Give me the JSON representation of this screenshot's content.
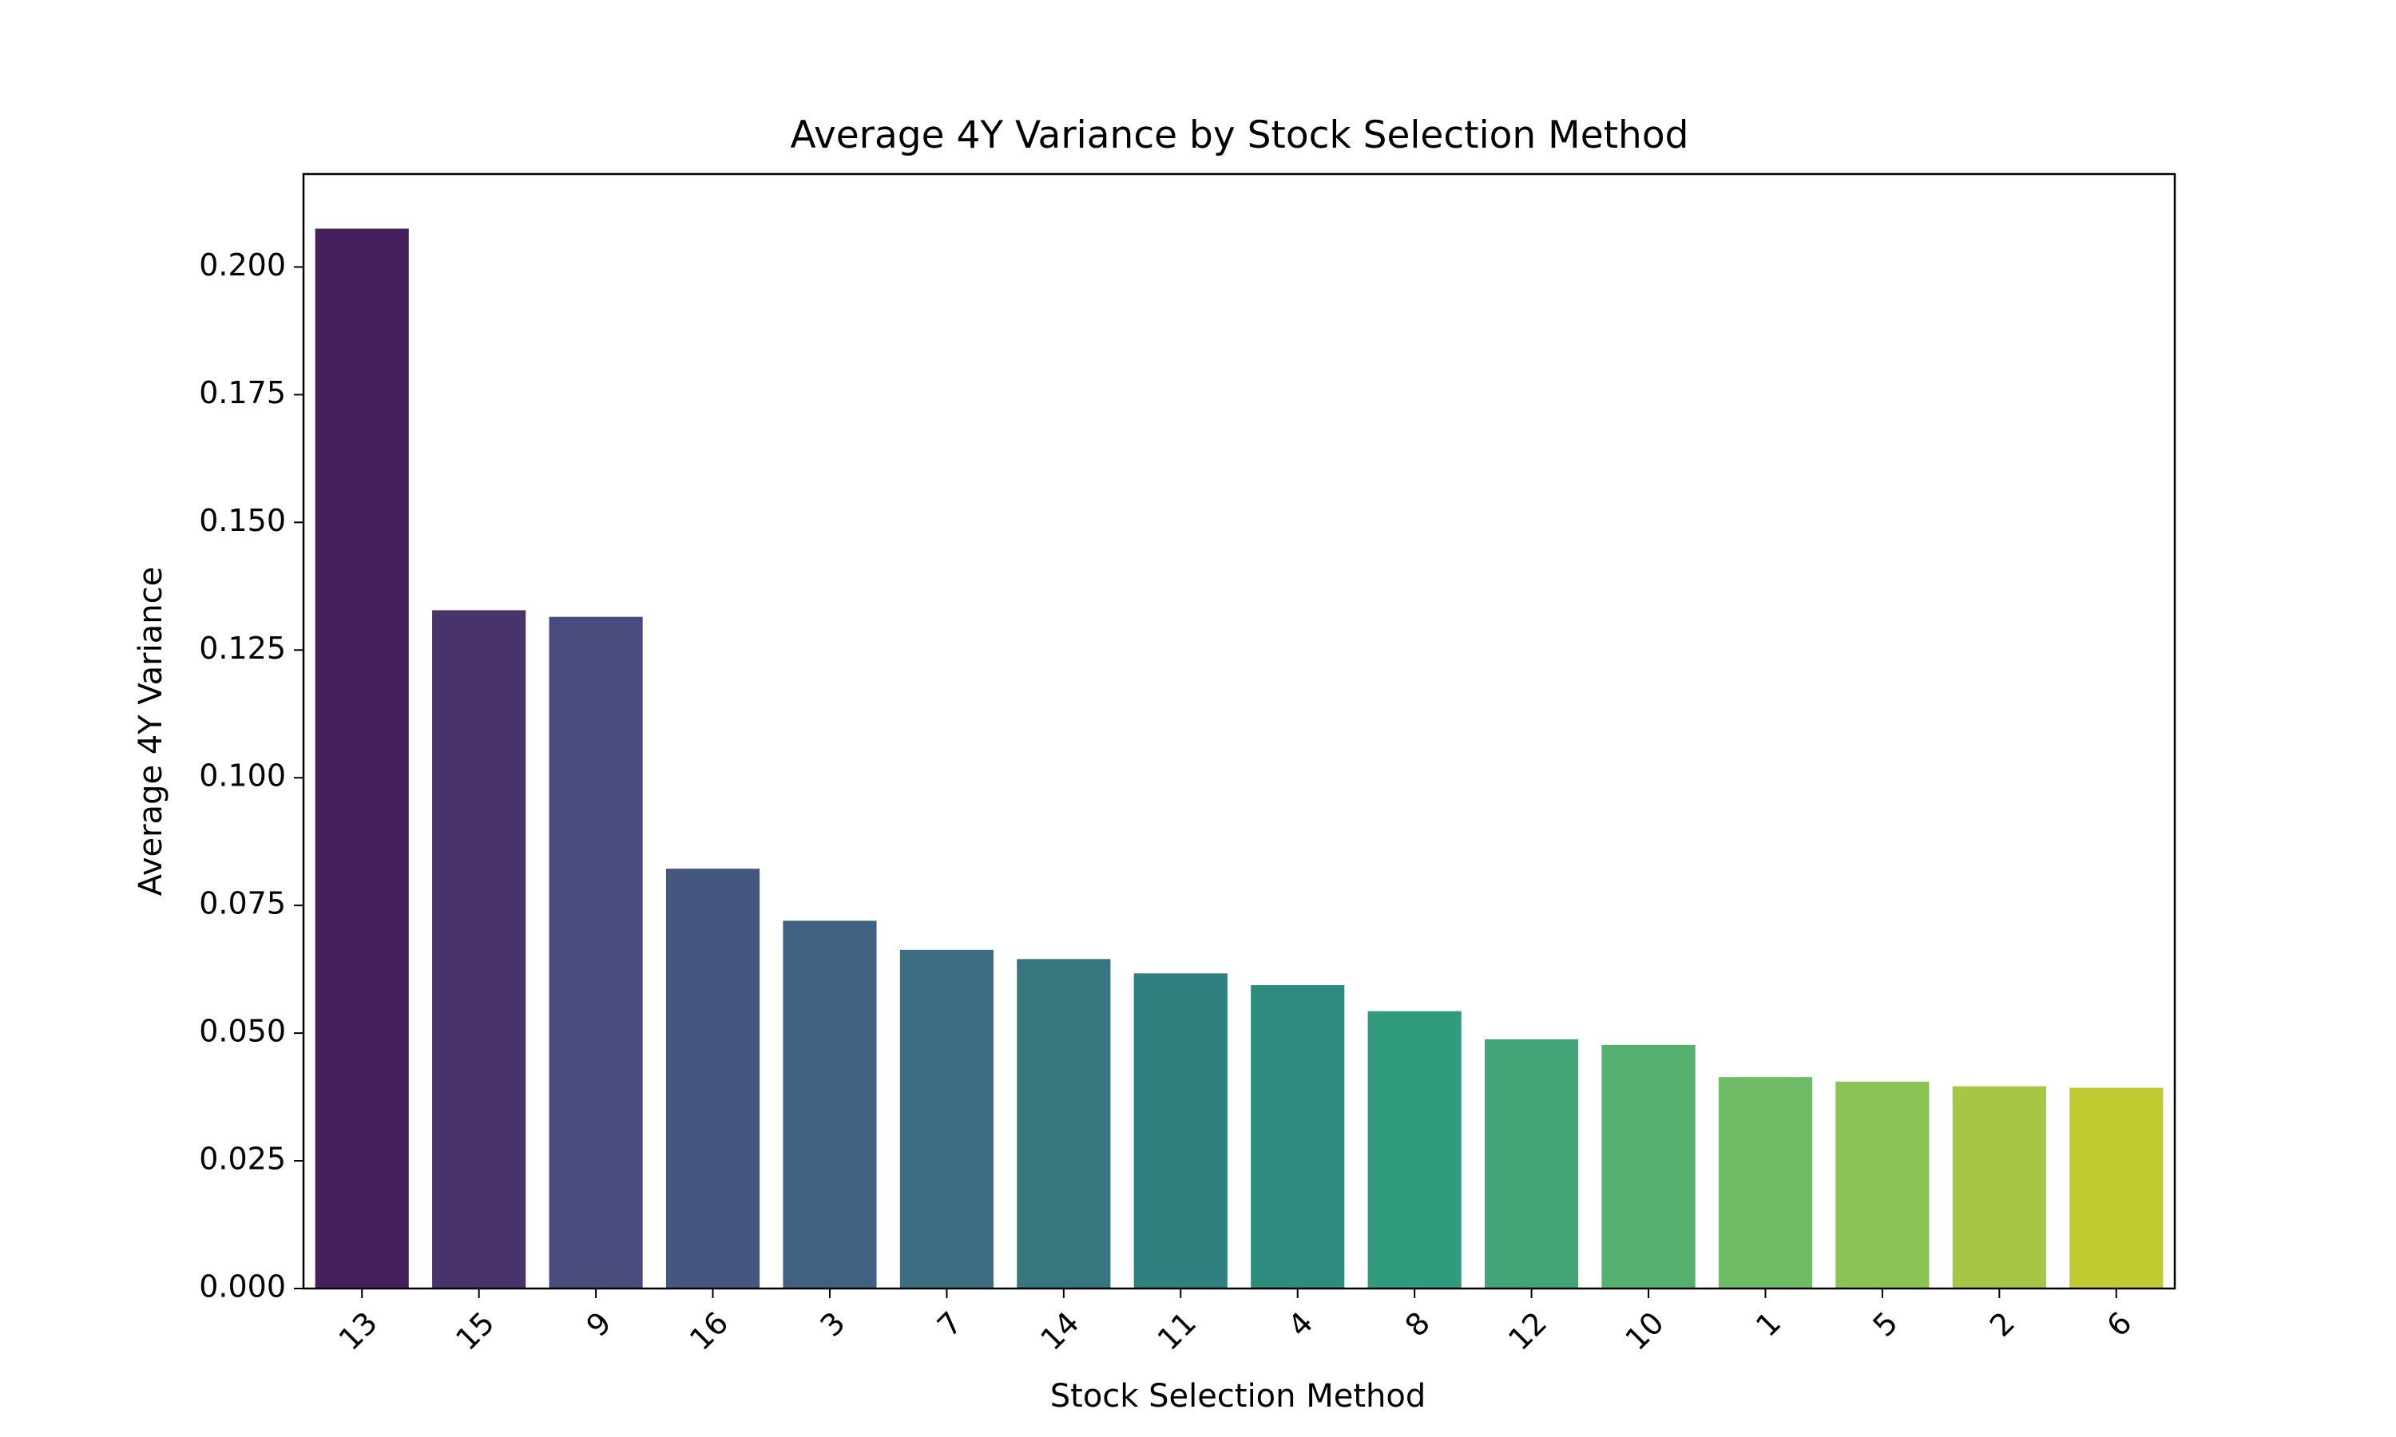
{
  "chart_data": {
    "type": "bar",
    "title": "Average 4Y Variance by Stock Selection Method",
    "xlabel": "Stock Selection Method",
    "ylabel": "Average 4Y Variance",
    "categories": [
      "13",
      "15",
      "9",
      "16",
      "3",
      "7",
      "14",
      "11",
      "4",
      "8",
      "12",
      "10",
      "1",
      "5",
      "2",
      "6"
    ],
    "values": [
      0.2075,
      0.1328,
      0.1315,
      0.0822,
      0.072,
      0.0663,
      0.0645,
      0.0617,
      0.0594,
      0.0543,
      0.0488,
      0.0477,
      0.0414,
      0.0405,
      0.0396,
      0.0393
    ],
    "ylim": [
      0,
      0.2182
    ],
    "yticks": [
      "0.000",
      "0.025",
      "0.050",
      "0.075",
      "0.100",
      "0.125",
      "0.150",
      "0.175",
      "0.200"
    ],
    "grid": false,
    "legend": "none",
    "colors": [
      "#46205d",
      "#48336b",
      "#4a4a7c",
      "#45577f",
      "#416183",
      "#3b6c80",
      "#35767f",
      "#2f807e",
      "#2e8c7f",
      "#319b7d",
      "#43a578",
      "#54b06e",
      "#6fbb66",
      "#8bc355",
      "#a7c646",
      "#c2ca32"
    ]
  }
}
